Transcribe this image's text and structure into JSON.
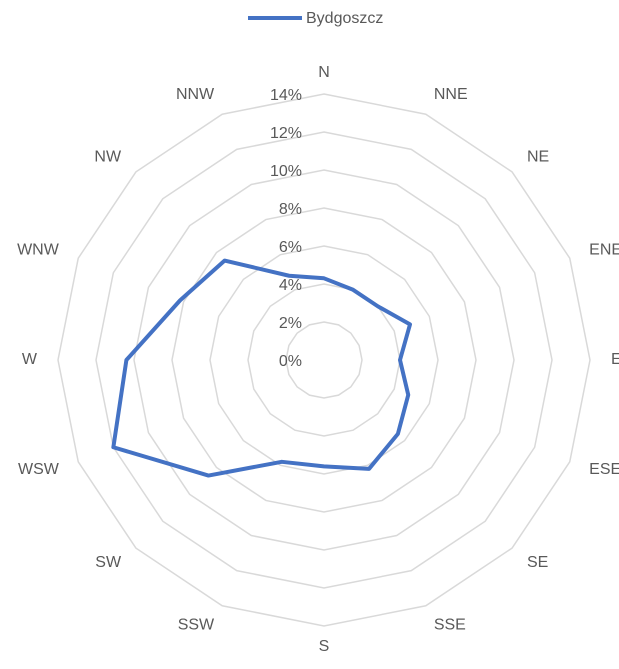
{
  "chart_data": {
    "type": "radar",
    "categories": [
      "N",
      "NNE",
      "NE",
      "ENE",
      "E",
      "ESE",
      "SE",
      "SSE",
      "S",
      "SSW",
      "SW",
      "WSW",
      "W",
      "WNW",
      "NW",
      "NNW"
    ],
    "series": [
      {
        "name": "Bydgoszcz",
        "color": "#4472c4",
        "values": [
          4.3,
          4.0,
          4.0,
          4.9,
          4.0,
          4.8,
          5.5,
          6.2,
          5.6,
          5.8,
          8.6,
          12.0,
          10.4,
          8.2,
          7.4,
          4.8
        ]
      }
    ],
    "ylim": [
      0,
      14
    ],
    "yticks": [
      {
        "value": 0,
        "label": "0%"
      },
      {
        "value": 2,
        "label": "2%"
      },
      {
        "value": 4,
        "label": "4%"
      },
      {
        "value": 6,
        "label": "6%"
      },
      {
        "value": 8,
        "label": "8%"
      },
      {
        "value": 10,
        "label": "10%"
      },
      {
        "value": 12,
        "label": "12%"
      },
      {
        "value": 14,
        "label": "14%"
      }
    ],
    "grid": true,
    "legend": "top"
  }
}
